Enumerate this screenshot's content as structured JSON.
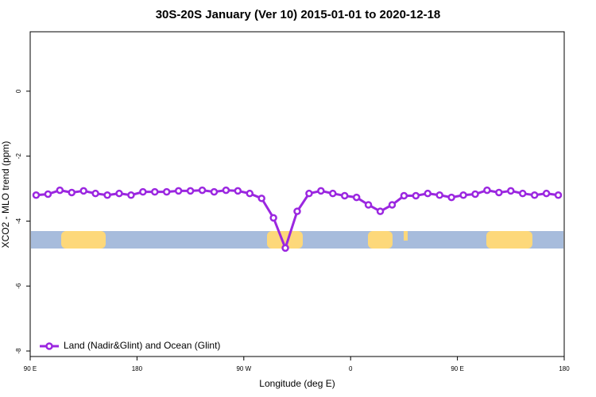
{
  "chart_data": {
    "type": "line",
    "title": "30S-20S January (Ver 10)   2015-01-01 to 2020-12-18",
    "x_label": "Longitude (deg E)",
    "y_label": "XCO2 - MLO trend (ppm)",
    "x": [
      95,
      105,
      115,
      125,
      135,
      145,
      155,
      165,
      175,
      185,
      195,
      205,
      215,
      225,
      235,
      245,
      255,
      265,
      275,
      285,
      295,
      305,
      315,
      325,
      335,
      345,
      355,
      365,
      375,
      385,
      395,
      405,
      415,
      425,
      435,
      445,
      455,
      465,
      475,
      485,
      495,
      505,
      515,
      525,
      535
    ],
    "series": [
      {
        "name": "Land (Nadir&Glint) and Ocean (Glint)",
        "color": "#9b27e0",
        "values": [
          -3.2,
          -3.17,
          -3.05,
          -3.12,
          -3.07,
          -3.15,
          -3.2,
          -3.15,
          -3.2,
          -3.1,
          -3.1,
          -3.1,
          -3.07,
          -3.07,
          -3.05,
          -3.1,
          -3.05,
          -3.07,
          -3.15,
          -3.3,
          -3.9,
          -4.83,
          -3.7,
          -3.15,
          -3.07,
          -3.15,
          -3.22,
          -3.27,
          -3.5,
          -3.7,
          -3.5,
          -3.22,
          -3.22,
          -3.15,
          -3.2,
          -3.27,
          -3.2,
          -3.17,
          -3.05,
          -3.12,
          -3.07,
          -3.15,
          -3.2,
          -3.15,
          -3.2
        ]
      }
    ],
    "xlim": [
      90,
      540
    ],
    "xticks": [
      {
        "value": 90,
        "label": "90 E"
      },
      180,
      {
        "value": 270,
        "label": "90 W"
      },
      {
        "value": 360,
        "label": "0"
      },
      {
        "value": 450,
        "label": "90 E"
      },
      {
        "value": 540,
        "label": "180"
      }
    ],
    "ylim": [
      -8.17,
      1.83
    ],
    "yticks": [
      0,
      -2,
      -4,
      -6,
      -8
    ],
    "legend": "bottom-left"
  }
}
